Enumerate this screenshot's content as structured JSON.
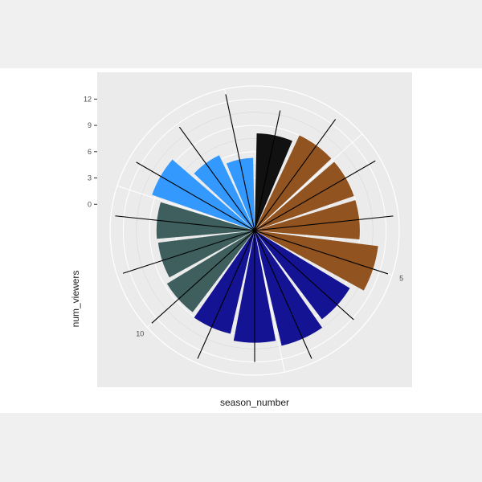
{
  "chart_data": {
    "type": "bar",
    "coord": "polar",
    "xlabel": "season_number",
    "ylabel": "num_viewers",
    "ylim": [
      -3,
      13.5
    ],
    "y_ticks": [
      0,
      3,
      6,
      9,
      12
    ],
    "x_tick_labels": [
      "5",
      "10"
    ],
    "grid": true,
    "panel_background": "#ebebeb",
    "categories": [
      1,
      2,
      3,
      4,
      5,
      6,
      7,
      8,
      9,
      10,
      11,
      12,
      13,
      14,
      15
    ],
    "values": [
      8.1,
      9.0,
      9.0,
      9.0,
      11.2,
      9.7,
      10.5,
      9.8,
      9.1,
      8.7,
      8.1,
      8.2,
      9.4,
      6.5,
      5.3
    ],
    "line_lengths": [
      11.0,
      12.7,
      12.9,
      12.9,
      13.0,
      12.2,
      13.0,
      12.0,
      13.0,
      12.8,
      12.8,
      13.0,
      12.6,
      11.6,
      12.9
    ],
    "colors": [
      "#111111",
      "#91531f",
      "#91531f",
      "#91531f",
      "#91531f",
      "#131394",
      "#131394",
      "#131394",
      "#131394",
      "#3f5f5f",
      "#3f5f5f",
      "#3f5f5f",
      "#3399ff",
      "#3399ff",
      "#3399ff"
    ],
    "segment_line_color": "#000000"
  }
}
